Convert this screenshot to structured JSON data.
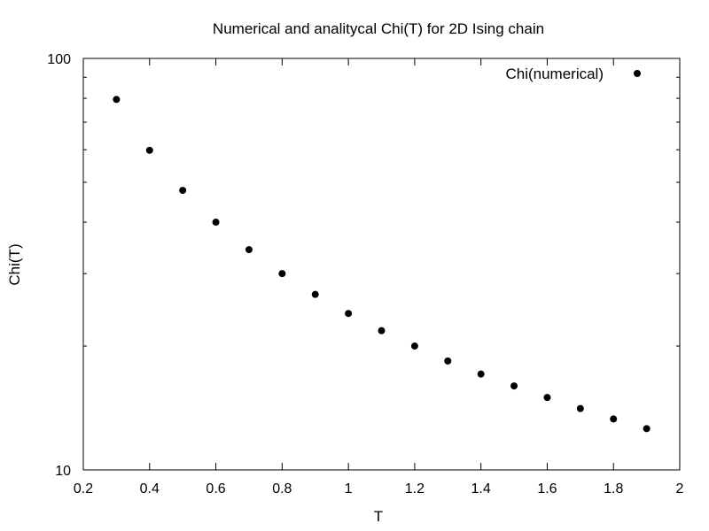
{
  "chart_data": {
    "type": "scatter",
    "title": "Numerical and analitycal Chi(T) for 2D Ising chain",
    "xlabel": "T",
    "ylabel": "Chi(T)",
    "xlim": [
      0.2,
      2
    ],
    "ylim": [
      10,
      100
    ],
    "yscale": "log",
    "grid": false,
    "legend_position": "top-right",
    "x_ticks": [
      "0.2",
      "0.4",
      "0.6",
      "0.8",
      "1",
      "1.2",
      "1.4",
      "1.6",
      "1.8",
      "2"
    ],
    "y_ticks": [
      "10",
      "100"
    ],
    "series": [
      {
        "name": "Chi(numerical)",
        "x": [
          0.3,
          0.4,
          0.5,
          0.6,
          0.7,
          0.8,
          0.9,
          1.0,
          1.1,
          1.2,
          1.3,
          1.4,
          1.5,
          1.6,
          1.7,
          1.8,
          1.9
        ],
        "y": [
          79.5,
          59.8,
          47.8,
          40.0,
          34.3,
          30.0,
          26.7,
          24.0,
          21.8,
          20.0,
          18.4,
          17.1,
          16.0,
          15.0,
          14.1,
          13.3,
          12.6
        ]
      }
    ]
  }
}
